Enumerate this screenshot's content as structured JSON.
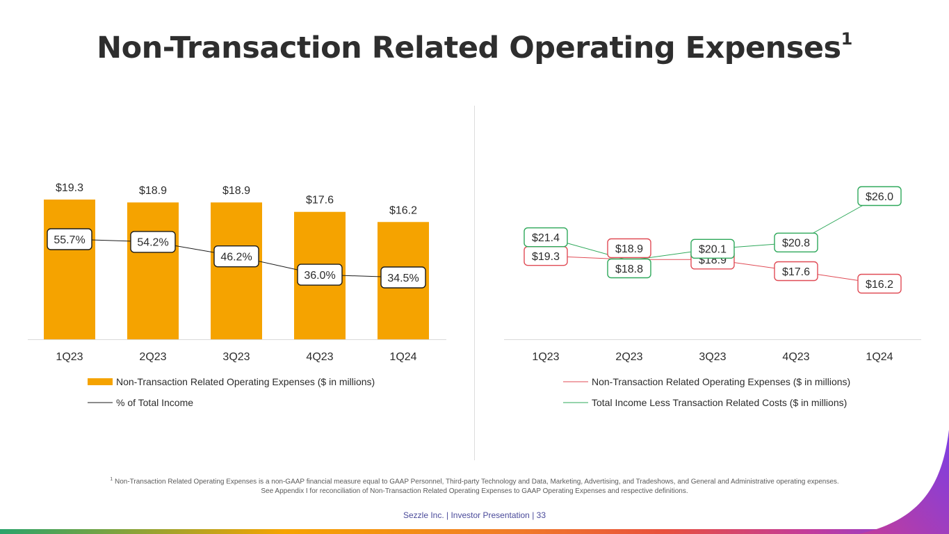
{
  "title": "Non-Transaction Related Operating Expenses",
  "title_sup": "1",
  "footnote": {
    "marker": "1",
    "line1": "Non-Transaction Related Operating Expenses is a non-GAAP financial measure equal to GAAP Personnel, Third-party Technology and Data, Marketing, Advertising, and Tradeshows, and General and Administrative operating expenses.",
    "line2": "See Appendix I for reconciliation of Non-Transaction Related Operating Expenses to GAAP Operating Expenses and respective definitions."
  },
  "footer": "Sezzle Inc. | Investor Presentation | 33",
  "colors": {
    "bar": "#f5a300",
    "red": "#e04b55",
    "green": "#2ea85a",
    "text": "#2b2b2b"
  },
  "chart_data": [
    {
      "type": "bar",
      "categories": [
        "1Q23",
        "2Q23",
        "3Q23",
        "4Q23",
        "1Q24"
      ],
      "series": [
        {
          "name": "Non-Transaction Related Operating Expenses ($ in millions)",
          "values": [
            19.3,
            18.9,
            18.9,
            17.6,
            16.2
          ],
          "labels": [
            "$19.3",
            "$18.9",
            "$18.9",
            "$17.6",
            "$16.2"
          ]
        },
        {
          "name": "% of Total Income",
          "type": "line",
          "values": [
            55.7,
            54.2,
            46.2,
            36.0,
            34.5
          ],
          "labels": [
            "55.7%",
            "54.2%",
            "46.2%",
            "36.0%",
            "34.5%"
          ]
        }
      ],
      "legend": "bottom"
    },
    {
      "type": "line",
      "categories": [
        "1Q23",
        "2Q23",
        "3Q23",
        "4Q23",
        "1Q24"
      ],
      "series": [
        {
          "name": "Non-Transaction Related Operating Expenses ($ in millions)",
          "color": "#e04b55",
          "values": [
            19.3,
            18.9,
            18.9,
            17.6,
            16.2
          ],
          "labels": [
            "$19.3",
            "$18.9",
            "$18.9",
            "$17.6",
            "$16.2"
          ]
        },
        {
          "name": "Total Income Less Transaction Related Costs ($ in millions)",
          "color": "#2ea85a",
          "values": [
            21.4,
            18.8,
            20.1,
            20.8,
            26.0
          ],
          "labels": [
            "$21.4",
            "$18.8",
            "$20.1",
            "$20.8",
            "$26.0"
          ]
        }
      ],
      "legend": "bottom"
    }
  ]
}
